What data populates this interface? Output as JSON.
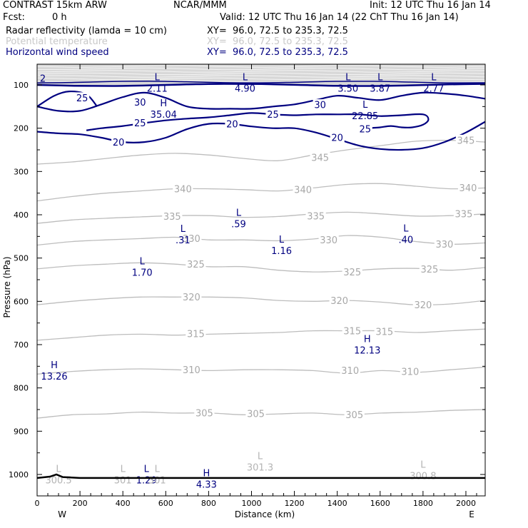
{
  "header": {
    "model": "CONTRAST 15km ARW",
    "center": "NCAR/MMM",
    "init": "Init: 12 UTC Thu 16 Jan 14",
    "fcst_label": "Fcst:",
    "fcst_value": "0 h",
    "valid": "Valid: 12 UTC Thu 16 Jan 14 (22 ChT Thu 16 Jan 14)",
    "fields": [
      {
        "name": "Radar reflectivity (lamda = 10 cm)",
        "xy": "XY=  96.0, 72.5 to 235.3, 72.5",
        "color": "#000000"
      },
      {
        "name": "Potential temperature",
        "xy": "XY=  96.0, 72.5 to 235.3, 72.5",
        "color": "#c8c8c8"
      },
      {
        "name": "Horizontal wind speed",
        "xy": "XY=  96.0, 72.5 to 235.3, 72.5",
        "color": "#000080"
      }
    ]
  },
  "chart_data": {
    "type": "contour",
    "xlabel": "Distance (km)",
    "ylabel": "Pressure (hPa)",
    "x_ticks": [
      "0",
      "200",
      "400",
      "600",
      "800",
      "1000",
      "1200",
      "1400",
      "1600",
      "1800",
      "2000"
    ],
    "y_ticks": [
      "100",
      "200",
      "300",
      "400",
      "500",
      "600",
      "700",
      "800",
      "900",
      "1000"
    ],
    "xlim": [
      0,
      2090
    ],
    "ylim_hpa": [
      55,
      1050
    ],
    "left_end_label": "W",
    "right_end_label": "E",
    "theta_contours": [
      {
        "level": "345",
        "p": [
          283,
          278,
          270,
          262,
          258,
          262,
          270,
          275,
          262,
          250,
          240,
          230,
          228,
          232
        ],
        "labels": [
          {
            "x": 1320,
            "p": 268
          },
          {
            "x": 2000,
            "p": 228
          }
        ]
      },
      {
        "level": "340",
        "p": [
          368,
          358,
          350,
          345,
          340,
          340,
          342,
          345,
          338,
          330,
          328,
          334,
          340,
          338
        ],
        "labels": [
          {
            "x": 680,
            "p": 340
          },
          {
            "x": 1240,
            "p": 342
          },
          {
            "x": 2010,
            "p": 338
          }
        ]
      },
      {
        "level": "335",
        "p": [
          420,
          412,
          408,
          405,
          402,
          402,
          406,
          404,
          398,
          394,
          398,
          403,
          402,
          398
        ],
        "labels": [
          {
            "x": 630,
            "p": 404
          },
          {
            "x": 1300,
            "p": 403
          },
          {
            "x": 1990,
            "p": 398
          }
        ]
      },
      {
        "level": "330",
        "p": [
          470,
          462,
          458,
          455,
          452,
          458,
          458,
          460,
          456,
          448,
          452,
          462,
          468,
          465
        ],
        "labels": [
          {
            "x": 720,
            "p": 455
          },
          {
            "x": 1360,
            "p": 458
          },
          {
            "x": 1900,
            "p": 468
          }
        ]
      },
      {
        "level": "325",
        "p": [
          525,
          518,
          514,
          511,
          514,
          520,
          520,
          528,
          532,
          530,
          525,
          524,
          528,
          522
        ],
        "labels": [
          {
            "x": 740,
            "p": 514
          },
          {
            "x": 1470,
            "p": 532
          },
          {
            "x": 1830,
            "p": 526
          }
        ]
      },
      {
        "level": "320",
        "p": [
          608,
          600,
          594,
          590,
          590,
          590,
          592,
          598,
          600,
          598,
          602,
          608,
          606,
          598
        ],
        "labels": [
          {
            "x": 720,
            "p": 590
          },
          {
            "x": 1410,
            "p": 598
          },
          {
            "x": 1800,
            "p": 608
          }
        ]
      },
      {
        "level": "315",
        "p": [
          690,
          684,
          678,
          676,
          678,
          676,
          674,
          672,
          668,
          668,
          668,
          672,
          668,
          664
        ],
        "labels": [
          {
            "x": 740,
            "p": 675
          },
          {
            "x": 1470,
            "p": 668
          },
          {
            "x": 1620,
            "p": 670
          }
        ]
      },
      {
        "level": "310",
        "p": [
          768,
          762,
          758,
          756,
          758,
          760,
          758,
          758,
          760,
          766,
          760,
          764,
          758,
          752
        ],
        "labels": [
          {
            "x": 720,
            "p": 758
          },
          {
            "x": 1460,
            "p": 760
          },
          {
            "x": 1740,
            "p": 762
          }
        ]
      },
      {
        "level": "305",
        "p": [
          870,
          862,
          860,
          856,
          858,
          858,
          862,
          860,
          858,
          862,
          858,
          856,
          852,
          850
        ],
        "labels": [
          {
            "x": 780,
            "p": 858
          },
          {
            "x": 1020,
            "p": 860
          },
          {
            "x": 1480,
            "p": 862
          }
        ]
      }
    ],
    "wind_contours": [
      {
        "level": "20",
        "x": [
          0,
          100,
          200,
          300,
          400,
          500,
          600,
          700,
          800,
          900,
          1000,
          1100,
          1200,
          1300,
          1400,
          1500,
          1600,
          1700,
          1800,
          1900,
          2000,
          2090
        ],
        "p": [
          208,
          212,
          214,
          222,
          232,
          232,
          222,
          202,
          190,
          190,
          196,
          200,
          200,
          210,
          225,
          240,
          248,
          250,
          246,
          232,
          210,
          185
        ],
        "labels": [
          {
            "x": 380,
            "p": 232
          },
          {
            "x": 910,
            "p": 190
          },
          {
            "x": 1400,
            "p": 222
          }
        ]
      },
      {
        "level": "25",
        "x": [
          230,
          300,
          400,
          500,
          600,
          700,
          800,
          900,
          1000,
          1100,
          1200,
          1300,
          1400,
          1500,
          1600,
          1700,
          1800,
          1825,
          1800,
          1750,
          1700,
          1650,
          1600,
          1550,
          1500
        ],
        "p": [
          205,
          200,
          195,
          188,
          182,
          178,
          175,
          170,
          165,
          168,
          170,
          168,
          168,
          168,
          172,
          170,
          168,
          180,
          192,
          198,
          198,
          195,
          198,
          200,
          204
        ],
        "labels": [
          {
            "x": 480,
            "p": 188
          },
          {
            "x": 1100,
            "p": 168
          },
          {
            "x": 1530,
            "p": 202
          }
        ]
      },
      {
        "level": "25",
        "x": [
          0,
          80,
          150,
          230,
          280
        ],
        "p": [
          150,
          125,
          115,
          122,
          150
        ],
        "labels": [
          {
            "x": 210,
            "p": 130
          }
        ]
      },
      {
        "level": "30",
        "x": [
          0,
          100,
          200,
          300,
          400,
          500,
          600,
          700,
          800,
          900,
          1000,
          1100,
          1200,
          1300,
          1400,
          1500,
          1600,
          1700,
          1800,
          1900,
          2000,
          2090
        ],
        "p": [
          150,
          160,
          160,
          145,
          128,
          118,
          130,
          150,
          155,
          155,
          155,
          150,
          145,
          135,
          125,
          130,
          135,
          125,
          118,
          120,
          125,
          132
        ],
        "labels": [
          {
            "x": 480,
            "p": 140
          },
          {
            "x": 1320,
            "p": 146
          }
        ]
      }
    ],
    "extrema": [
      {
        "type": "L",
        "value": "2.11",
        "x": 560,
        "p": 95
      },
      {
        "type": "L",
        "value": "4.90",
        "x": 970,
        "p": 95
      },
      {
        "type": "L",
        "value": "3.50",
        "x": 1450,
        "p": 95
      },
      {
        "type": "L",
        "value": "3.87",
        "x": 1600,
        "p": 95
      },
      {
        "type": "L",
        "value": "2.77",
        "x": 1850,
        "p": 95
      },
      {
        "type": "H",
        "value": "35.04",
        "x": 590,
        "p": 155
      },
      {
        "type": "L",
        "value": "22.85",
        "x": 1530,
        "p": 158
      },
      {
        "type": "L",
        "value": ".31",
        "x": 680,
        "p": 445
      },
      {
        "type": "L",
        "value": ".59",
        "x": 940,
        "p": 408
      },
      {
        "type": "L",
        "value": "1.16",
        "x": 1140,
        "p": 470
      },
      {
        "type": "L",
        "value": ".40",
        "x": 1720,
        "p": 444
      },
      {
        "type": "L",
        "value": "1.70",
        "x": 490,
        "p": 520
      },
      {
        "type": "H",
        "value": "12.13",
        "x": 1540,
        "p": 700
      },
      {
        "type": "H",
        "value": "13.26",
        "x": 80,
        "p": 760
      },
      {
        "type": "L",
        "value": "1.29",
        "x": 510,
        "p": 1000
      },
      {
        "type": "H",
        "value": "4.33",
        "x": 790,
        "p": 1010
      }
    ],
    "surface_extrema": [
      {
        "type": "L",
        "value": "300.5",
        "x": 100,
        "p": 1000
      },
      {
        "type": "L",
        "value": "301",
        "x": 400,
        "p": 1000
      },
      {
        "type": "L",
        "value": "301",
        "x": 560,
        "p": 1000
      },
      {
        "type": "L",
        "value": "301.3",
        "x": 1040,
        "p": 970
      },
      {
        "type": "L",
        "value": "300.8",
        "x": 1800,
        "p": 990
      }
    ],
    "top_partial_value": "2"
  },
  "colors": {
    "theta": "#bdbdbd",
    "wind": "#000080",
    "axis": "#000000",
    "band": "#d8d8d8"
  }
}
